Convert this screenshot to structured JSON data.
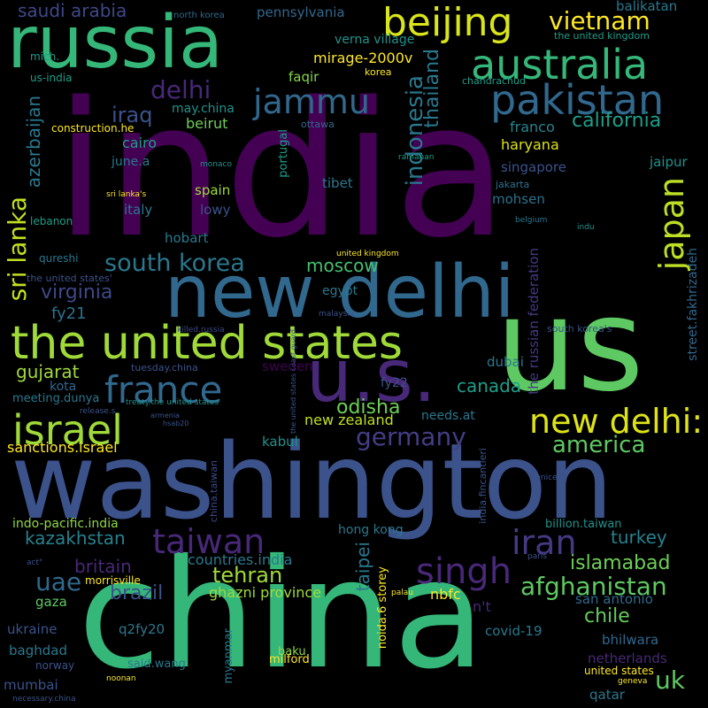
{
  "words": [
    {
      "text": "india",
      "color": "#440154"
    },
    {
      "text": "china",
      "color": "#35b779"
    },
    {
      "text": "washington",
      "color": "#3b528b"
    },
    {
      "text": "us",
      "color": "#5ec962"
    },
    {
      "text": "new delhi",
      "color": "#31688e"
    },
    {
      "text": "russia",
      "color": "#35b779"
    },
    {
      "text": "u.s.",
      "color": "#482878"
    },
    {
      "text": "the united states",
      "color": "#a0da39"
    },
    {
      "text": "beijing",
      "color": "#d9e51a"
    },
    {
      "text": "australia",
      "color": "#35b779"
    },
    {
      "text": "pakistan",
      "color": "#31688e"
    },
    {
      "text": "israel",
      "color": "#a0da39"
    },
    {
      "text": "france",
      "color": "#31688e"
    },
    {
      "text": "new delhi:",
      "color": "#dde318"
    },
    {
      "text": "taiwan",
      "color": "#482878"
    },
    {
      "text": "singh",
      "color": "#482878"
    },
    {
      "text": "iran",
      "color": "#443983"
    },
    {
      "text": "japan",
      "color": "#bddf26"
    },
    {
      "text": "jammu",
      "color": "#31688e"
    },
    {
      "text": "vietnam",
      "color": "#fde725"
    },
    {
      "text": "south korea",
      "color": "#2a788e"
    },
    {
      "text": "delhi",
      "color": "#482878"
    },
    {
      "text": "germany",
      "color": "#433e85"
    },
    {
      "text": "afghanistan",
      "color": "#5ec962"
    },
    {
      "text": "sri lanka",
      "color": "#c2df23"
    },
    {
      "text": "uae",
      "color": "#31688e"
    },
    {
      "text": "indonesia",
      "color": "#2a788e"
    },
    {
      "text": "america",
      "color": "#5ec962"
    },
    {
      "text": "tehran",
      "color": "#a0da39"
    },
    {
      "text": "islamabad",
      "color": "#6ece58"
    },
    {
      "text": "iraq",
      "color": "#3b528b"
    },
    {
      "text": "california",
      "color": "#1f9e89"
    },
    {
      "text": "uk",
      "color": "#5ec962"
    },
    {
      "text": "brazil",
      "color": "#3b528b"
    },
    {
      "text": "britain",
      "color": "#482878"
    },
    {
      "text": "canada",
      "color": "#1f9e89"
    },
    {
      "text": "virginia",
      "color": "#3e4989"
    },
    {
      "text": "kazakhstan",
      "color": "#26828e"
    },
    {
      "text": "turkey",
      "color": "#26828e"
    },
    {
      "text": "odisha",
      "color": "#6ece58"
    },
    {
      "text": "thailand",
      "color": "#2a788e"
    },
    {
      "text": "moscow",
      "color": "#44bf70"
    },
    {
      "text": "gujarat",
      "color": "#a0da39"
    },
    {
      "text": "chile",
      "color": "#65cb5e"
    },
    {
      "text": "saudi arabia",
      "color": "#3e4989"
    },
    {
      "text": "azerbaijan",
      "color": "#2a788e"
    },
    {
      "text": "taipei",
      "color": "#2a788e"
    },
    {
      "text": "fy21",
      "color": "#2c728e"
    },
    {
      "text": "street.fakhrizadeh",
      "color": "#31688e"
    },
    {
      "text": "the russian federation",
      "color": "#443983"
    },
    {
      "text": "new zealand",
      "color": "#c2df23"
    },
    {
      "text": "countries.india",
      "color": "#2a788e"
    },
    {
      "text": "ghazni province",
      "color": "#a0da39"
    },
    {
      "text": "pennsylvania",
      "color": "#31688e"
    },
    {
      "text": "balikatan",
      "color": "#2a788e"
    },
    {
      "text": "mirage-2000v",
      "color": "#fde725"
    },
    {
      "text": "verna village",
      "color": "#21918c"
    },
    {
      "text": "sanctions.israel",
      "color": "#fde725"
    },
    {
      "text": "indo-pacific.india",
      "color": "#8fd744"
    },
    {
      "text": "hong kong",
      "color": "#2a788e"
    },
    {
      "text": "billion.taiwan",
      "color": "#21918c"
    },
    {
      "text": "haryana",
      "color": "#dde318"
    },
    {
      "text": "franco",
      "color": "#25848e"
    },
    {
      "text": "singapore",
      "color": "#3b528b"
    },
    {
      "text": "jaipur",
      "color": "#21918c"
    },
    {
      "text": "cairo",
      "color": "#1f9e89"
    },
    {
      "text": "beirut",
      "color": "#6ece58"
    },
    {
      "text": "may.china",
      "color": "#21918c"
    },
    {
      "text": "faqir",
      "color": "#86d549"
    },
    {
      "text": "tibet",
      "color": "#2a788e"
    },
    {
      "text": "spain",
      "color": "#a0da39"
    },
    {
      "text": "lowy",
      "color": "#3b528b"
    },
    {
      "text": "italy",
      "color": "#2a788e"
    },
    {
      "text": "hobart",
      "color": "#2a788e"
    },
    {
      "text": "mohsen",
      "color": "#2c728e"
    },
    {
      "text": "june.a",
      "color": "#2a788e"
    },
    {
      "text": "kota",
      "color": "#31688e"
    },
    {
      "text": "meeting.dunya",
      "color": "#2a788e"
    },
    {
      "text": "kabul",
      "color": "#21918c"
    },
    {
      "text": "needs.at",
      "color": "#2a788e"
    },
    {
      "text": "fy22",
      "color": "#3b528b"
    },
    {
      "text": "dubai",
      "color": "#2a788e"
    },
    {
      "text": "sweden",
      "color": "#440154"
    },
    {
      "text": "egypt",
      "color": "#2a788e"
    },
    {
      "text": "nbfc",
      "color": "#fde725"
    },
    {
      "text": "n't",
      "color": "#482878"
    },
    {
      "text": "san antonio",
      "color": "#31688e"
    },
    {
      "text": "gaza",
      "color": "#5ec962"
    },
    {
      "text": "morrisville",
      "color": "#fde725"
    },
    {
      "text": "ukraine",
      "color": "#3b528b"
    },
    {
      "text": "q2fy20",
      "color": "#2a788e"
    },
    {
      "text": "baghdad",
      "color": "#2a788e"
    },
    {
      "text": "bhilwara",
      "color": "#31688e"
    },
    {
      "text": "covid-19",
      "color": "#2a788e"
    },
    {
      "text": "netherlands",
      "color": "#482878"
    },
    {
      "text": "said.wang",
      "color": "#2a788e"
    },
    {
      "text": "baku",
      "color": "#8fd744"
    },
    {
      "text": "milford",
      "color": "#fde725"
    },
    {
      "text": "norway",
      "color": "#3b528b"
    },
    {
      "text": "mumbai",
      "color": "#3b528b"
    },
    {
      "text": "united states",
      "color": "#fde725"
    },
    {
      "text": "qatar",
      "color": "#2a788e"
    },
    {
      "text": "noida.6 storey",
      "color": "#fde725"
    },
    {
      "text": "myanmar",
      "color": "#2a788e"
    },
    {
      "text": "portugal",
      "color": "#1f9e89"
    },
    {
      "text": "china.taiwan",
      "color": "#3e4989"
    },
    {
      "text": "india.fincantieri",
      "color": "#3b528b"
    },
    {
      "text": "korea",
      "color": "#fde725"
    },
    {
      "text": "qureshi",
      "color": "#2a788e"
    },
    {
      "text": "lebanon",
      "color": "#1f9e89"
    },
    {
      "text": "mich.",
      "color": "#1f9e89"
    },
    {
      "text": "us-india",
      "color": "#1f9e89"
    },
    {
      "text": "construction.he",
      "color": "#fde725"
    },
    {
      "text": "north korea",
      "color": "#31688e"
    },
    {
      "text": "the united kingdom",
      "color": "#1f9e89"
    },
    {
      "text": "chandrachud",
      "color": "#1f9e89"
    },
    {
      "text": "ottawa",
      "color": "#31688e"
    },
    {
      "text": "ramanan",
      "color": "#1f9e89"
    },
    {
      "text": "monaco",
      "color": "#21918c"
    },
    {
      "text": "jakarta",
      "color": "#2c728e"
    },
    {
      "text": "sri lanka's",
      "color": "#fde725"
    },
    {
      "text": "belgium",
      "color": "#2a788e"
    },
    {
      "text": "indu",
      "color": "#21918c"
    },
    {
      "text": "united kingdom",
      "color": "#fde725"
    },
    {
      "text": "the united states'",
      "color": "#3b528b"
    },
    {
      "text": "malaysia",
      "color": "#3b528b"
    },
    {
      "text": "killed.russia",
      "color": "#3e4989"
    },
    {
      "text": "the united states coast guard",
      "color": "#3b528b"
    },
    {
      "text": "south korea's",
      "color": "#3b528b"
    },
    {
      "text": "tuesday.china",
      "color": "#3b528b"
    },
    {
      "text": "treaty.the united states",
      "color": "#21918c"
    },
    {
      "text": "release.s",
      "color": "#3b528b"
    },
    {
      "text": "armenia",
      "color": "#3b528b"
    },
    {
      "text": "hsab20",
      "color": "#3b528b"
    },
    {
      "text": "venice",
      "color": "#3b528b"
    },
    {
      "text": "act\"",
      "color": "#3b528b"
    },
    {
      "text": "paris",
      "color": "#3b528b"
    },
    {
      "text": "palau",
      "color": "#fde725"
    },
    {
      "text": "noonan",
      "color": "#fde725"
    },
    {
      "text": "geneva",
      "color": "#fde725"
    },
    {
      "text": "necessary.china",
      "color": "#3b528b"
    }
  ]
}
